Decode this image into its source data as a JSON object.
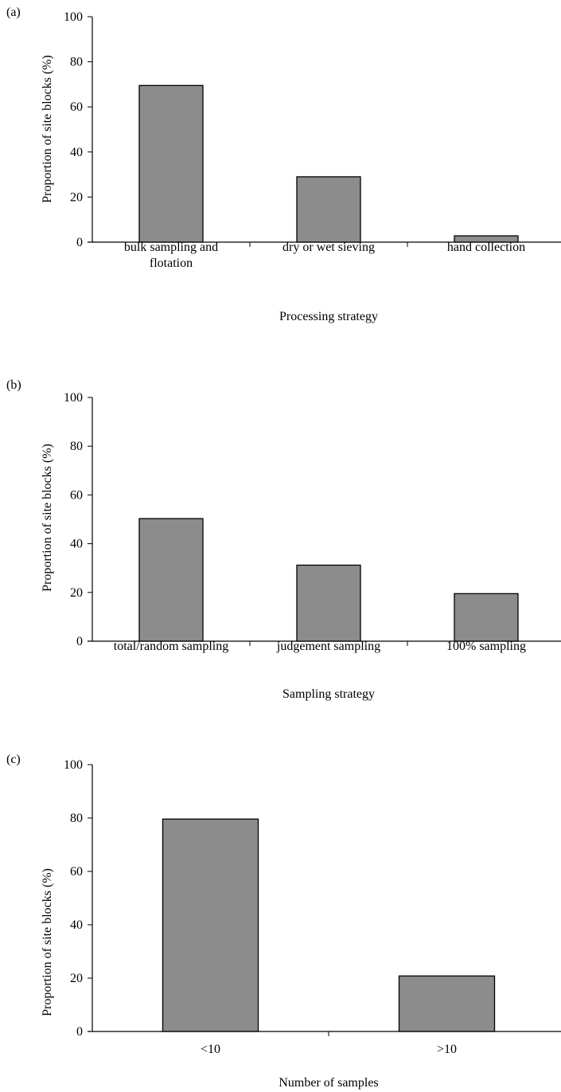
{
  "chart_data": [
    {
      "type": "bar",
      "panel_label": "(a)",
      "categories": [
        [
          "bulk sampling and",
          "flotation"
        ],
        [
          "dry or wet sieving"
        ],
        [
          "hand collection"
        ]
      ],
      "values": [
        69.5,
        29.0,
        2.8
      ],
      "xlabel": "Processing strategy",
      "ylabel": "Proportion of site blocks (%)",
      "ylim": [
        0,
        100
      ],
      "yticks": [
        "0",
        "20",
        "40",
        "60",
        "80",
        "100"
      ],
      "bar_color": "#8c8c8c",
      "grid": false
    },
    {
      "type": "bar",
      "panel_label": "(b)",
      "categories": [
        [
          "total/random sampling"
        ],
        [
          "judgement sampling"
        ],
        [
          "100% sampling"
        ]
      ],
      "values": [
        50.3,
        31.2,
        19.5
      ],
      "xlabel": "Sampling strategy",
      "ylabel": "Proportion of site blocks (%)",
      "ylim": [
        0,
        100
      ],
      "yticks": [
        "0",
        "20",
        "40",
        "60",
        "80",
        "100"
      ],
      "bar_color": "#8c8c8c",
      "grid": false
    },
    {
      "type": "bar",
      "panel_label": "(c)",
      "categories": [
        [
          "<10"
        ],
        [
          ">10"
        ]
      ],
      "values": [
        79.6,
        20.8
      ],
      "xlabel": "Number of samples",
      "ylabel": "Proportion of site blocks (%)",
      "ylim": [
        0,
        100
      ],
      "yticks": [
        "0",
        "20",
        "40",
        "60",
        "80",
        "100"
      ],
      "bar_color": "#8c8c8c",
      "grid": false
    }
  ]
}
